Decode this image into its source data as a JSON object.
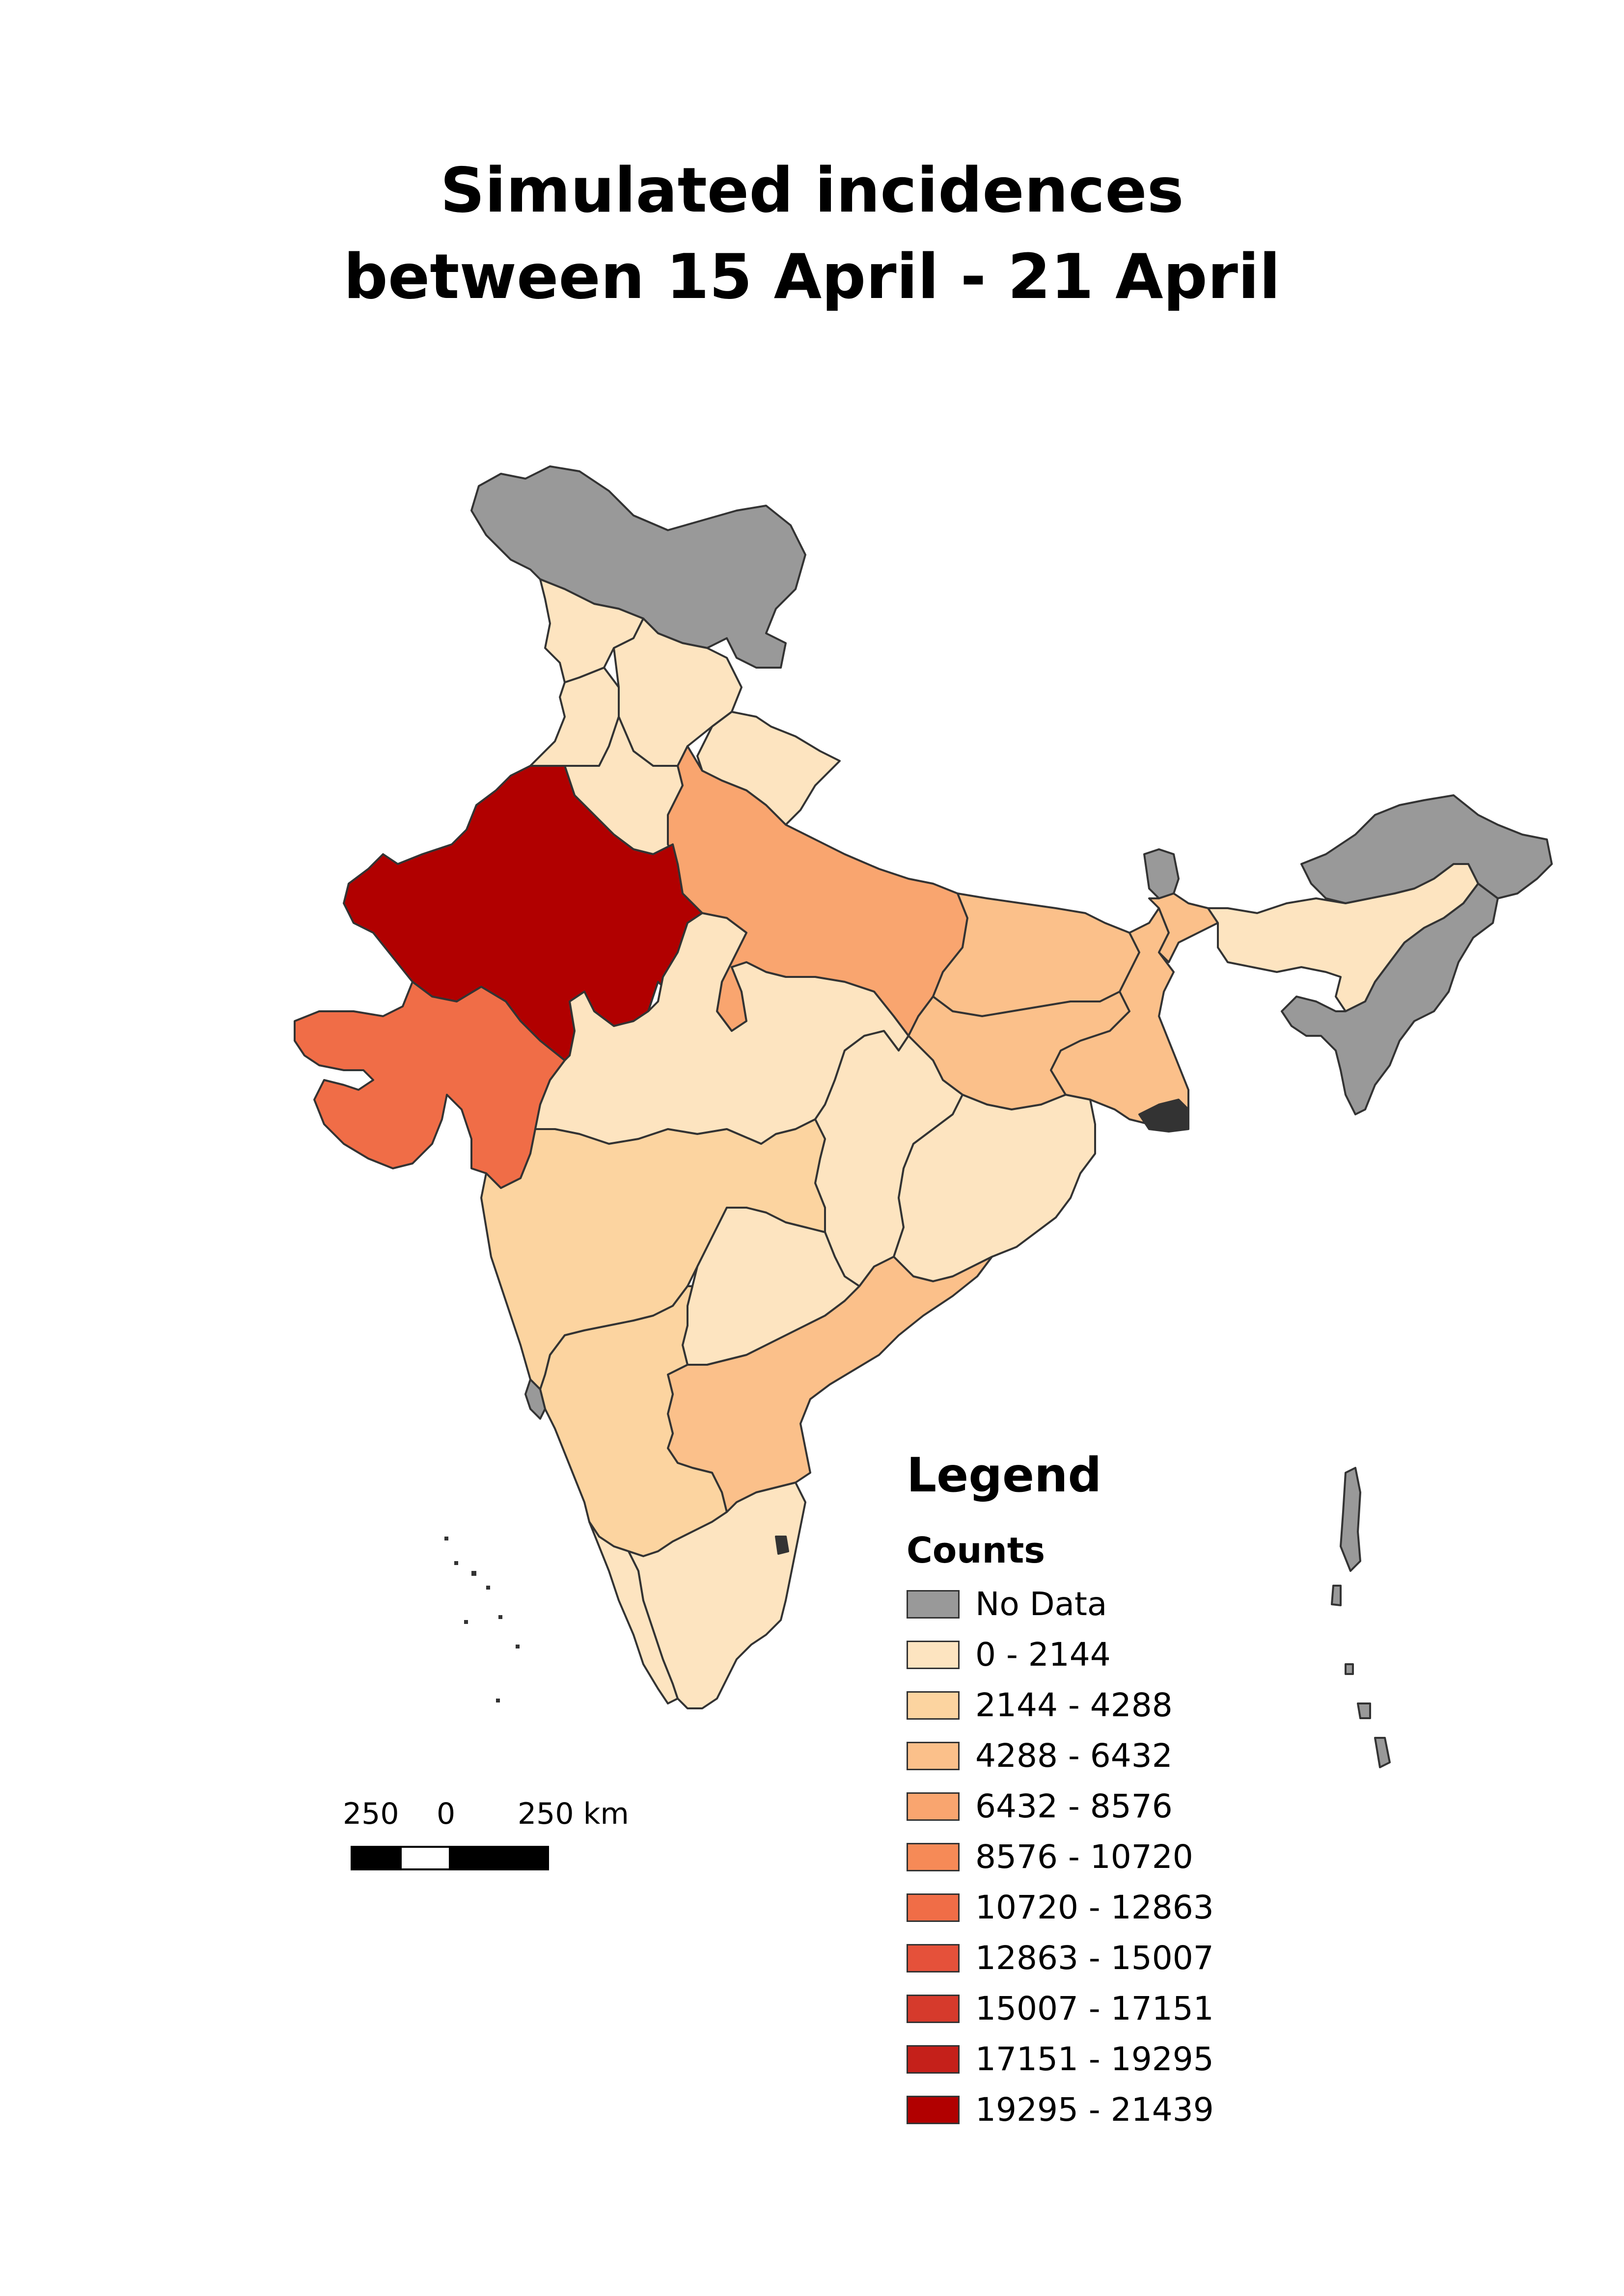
{
  "title": {
    "line1": "Simulated incidences",
    "line2": "between 15 April - 21 April"
  },
  "legend": {
    "title": "Legend",
    "subtitle": "Counts",
    "items": [
      {
        "label": "No Data",
        "color": "#999999"
      },
      {
        "label": "0 - 2144",
        "color": "#fde4c0"
      },
      {
        "label": "2144 - 4288",
        "color": "#fcd4a0"
      },
      {
        "label": "4288 - 6432",
        "color": "#fbc08a"
      },
      {
        "label": "6432 - 8576",
        "color": "#f9a56f"
      },
      {
        "label": "8576 - 10720",
        "color": "#f68a57"
      },
      {
        "label": "10720 - 12863",
        "color": "#f06d47"
      },
      {
        "label": "12863 - 15007",
        "color": "#e5513a"
      },
      {
        "label": "15007 - 17151",
        "color": "#d63a2c"
      },
      {
        "label": "17151 - 19295",
        "color": "#c5201a"
      },
      {
        "label": "19295 - 21439",
        "color": "#b10000"
      }
    ]
  },
  "scalebar": {
    "left_label": "250",
    "mid_label": "0",
    "right_label": "250 km"
  },
  "regions": [
    {
      "name": "jammu-kashmir",
      "class": "No Data"
    },
    {
      "name": "himachal-pradesh",
      "class": "0 - 2144"
    },
    {
      "name": "punjab",
      "class": "0 - 2144"
    },
    {
      "name": "uttarakhand",
      "class": "0 - 2144"
    },
    {
      "name": "haryana",
      "class": "0 - 2144"
    },
    {
      "name": "rajasthan",
      "class": "19295 - 21439"
    },
    {
      "name": "uttar-pradesh",
      "class": "6432 - 8576"
    },
    {
      "name": "gujarat",
      "class": "10720 - 12863"
    },
    {
      "name": "madhya-pradesh",
      "class": "0 - 2144"
    },
    {
      "name": "bihar",
      "class": "4288 - 6432"
    },
    {
      "name": "jharkhand",
      "class": "4288 - 6432"
    },
    {
      "name": "west-bengal",
      "class": "4288 - 6432"
    },
    {
      "name": "chhattisgarh",
      "class": "0 - 2144"
    },
    {
      "name": "odisha",
      "class": "0 - 2144"
    },
    {
      "name": "maharashtra",
      "class": "2144 - 4288"
    },
    {
      "name": "telangana",
      "class": "0 - 2144"
    },
    {
      "name": "andhra-pradesh",
      "class": "4288 - 6432"
    },
    {
      "name": "karnataka",
      "class": "2144 - 4288"
    },
    {
      "name": "goa",
      "class": "No Data"
    },
    {
      "name": "kerala",
      "class": "0 - 2144"
    },
    {
      "name": "tamil-nadu",
      "class": "0 - 2144"
    },
    {
      "name": "sikkim",
      "class": "No Data"
    },
    {
      "name": "arunachal-pradesh",
      "class": "No Data"
    },
    {
      "name": "assam",
      "class": "0 - 2144"
    },
    {
      "name": "northeast-states",
      "class": "No Data"
    },
    {
      "name": "andaman-nicobar",
      "class": "No Data"
    }
  ]
}
